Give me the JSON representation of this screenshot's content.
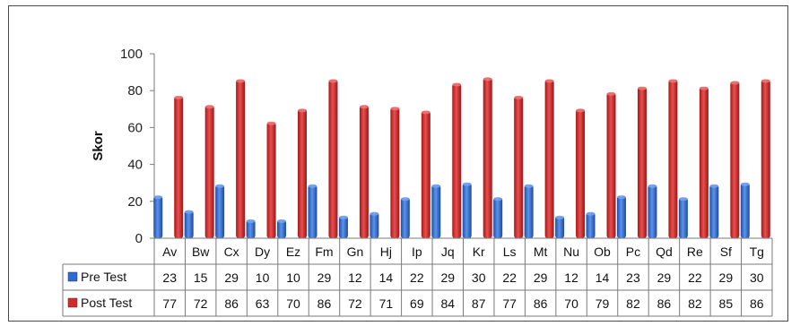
{
  "chart_data": {
    "type": "bar",
    "title": "",
    "xlabel": "",
    "ylabel": "Skor",
    "ylim": [
      0,
      100
    ],
    "yticks": [
      0,
      20,
      40,
      60,
      80,
      100
    ],
    "grid": false,
    "legend_placement": "left of data table",
    "categories": [
      "Av",
      "Bw",
      "Cx",
      "Dy",
      "Ez",
      "Fm",
      "Gn",
      "Hj",
      "Ip",
      "Jq",
      "Kr",
      "Ls",
      "Mt",
      "Nu",
      "Ob",
      "Pc",
      "Qd",
      "Re",
      "Sf",
      "Tg"
    ],
    "series": [
      {
        "name": "Pre Test",
        "color": "#2f6bd1",
        "values": [
          23,
          15,
          29,
          10,
          10,
          29,
          12,
          14,
          22,
          29,
          30,
          22,
          29,
          12,
          14,
          23,
          29,
          22,
          29,
          30
        ]
      },
      {
        "name": "Post Test",
        "color": "#d42a2a",
        "values": [
          77,
          72,
          86,
          63,
          70,
          86,
          72,
          71,
          69,
          84,
          87,
          77,
          86,
          70,
          79,
          82,
          86,
          82,
          85,
          86
        ]
      }
    ]
  }
}
